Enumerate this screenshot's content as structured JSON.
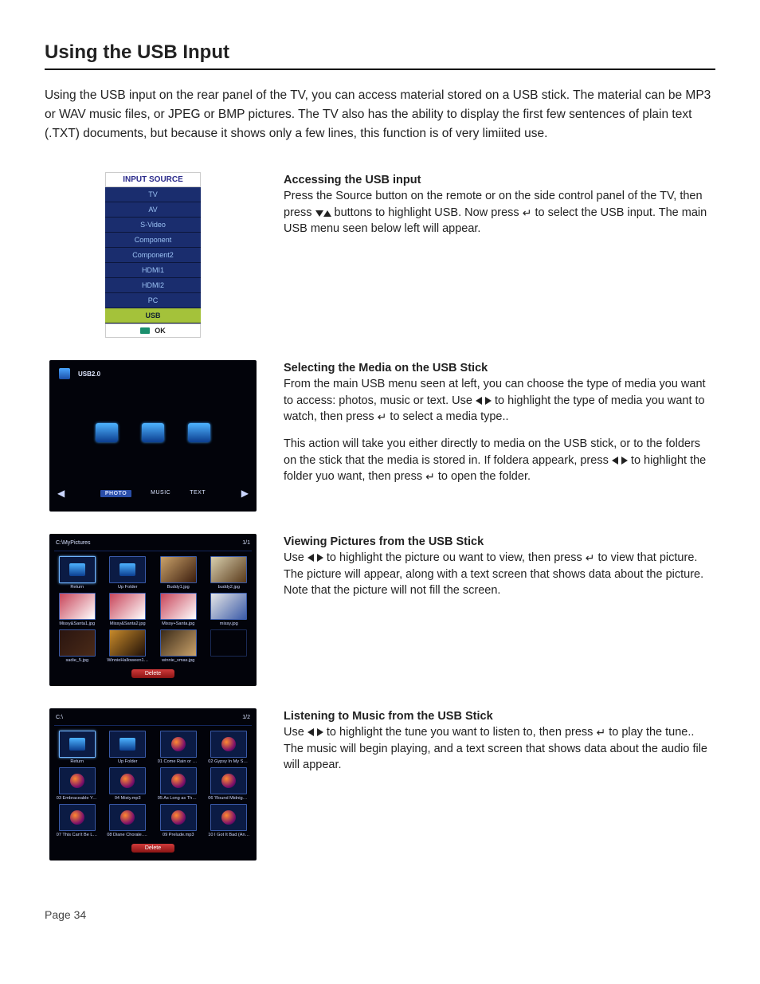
{
  "title": "Using the USB Input",
  "intro": "Using the USB input on the rear panel of the TV, you can access material stored on a USB stick. The material can be MP3 or WAV music files, or JPEG or BMP pictures. The TV also has the ability to display the first few sentences of plain text (.TXT) documents, but because it shows only a few lines, this function is of very limiited use.",
  "page_footer": "Page 34",
  "sec1": {
    "heading": "Accessing the USB input",
    "p1a": "Press the Source button on the remote or on the side control panel of the TV, then press ",
    "p1b": " buttons to highlight USB. Now press ",
    "p1c": "  to select the USB input. The main USB menu seen below left will appear."
  },
  "sec2": {
    "heading": "Selecting the Media on the USB Stick",
    "p1a": "From the main USB menu seen at left, you can choose the type of media you want to access: photos, music or text. Use ",
    "p1b": " to highlight  the type of media you want to watch, then press ",
    "p1c": "  to select a media type..",
    "p2a": "This action will take you either directly to media on the USB stick, or to the folders on the stick that the media is stored in. If foldera appeark, press ",
    "p2b": " to highlight  the folder yuo want, then press ",
    "p2c": "  to open the folder."
  },
  "sec3": {
    "heading": "Viewing  Pictures from the USB Stick",
    "p1a": "Use ",
    "p1b": " to highlight  the picture ou want to view, then press ",
    "p1c": "  to view that picture. The picture will appear, along with a text screen that shows data about the picture. Note that the picture will not fill the screen."
  },
  "sec4": {
    "heading": "Listening to Music  from the USB Stick",
    "p1a": "Use ",
    "p1b": " to highlight the tune  you want to listen to, then press ",
    "p1c": "  to play the tune.. The music will begin playing, and a text screen that shows data about the audio file will appear."
  },
  "input_source": {
    "title": "INPUT SOURCE",
    "items": [
      "TV",
      "AV",
      "S-Video",
      "Component",
      "Component2",
      "HDMI1",
      "HDMI2",
      "PC",
      "USB"
    ],
    "selected_index": 8,
    "ok_label": "OK",
    "colors": {
      "bg": "#1a2d6e",
      "text": "#9cc3f5",
      "sel_bg": "#a4c23a",
      "sel_text": "#102030",
      "head_text": "#2a2a8a"
    }
  },
  "media_menu": {
    "device": "USB2.0",
    "options": [
      "PHOTO",
      "MUSIC",
      "TEXT"
    ],
    "selected_index": 0,
    "colors": {
      "bg": "#02030a",
      "tile": "#1b4fa8",
      "text": "#d8e2ff",
      "sel_bg": "#2a4ea8"
    }
  },
  "photo_grid": {
    "path_label": "C:\\MyPictures",
    "counter": "1/1",
    "delete_label": "Delete",
    "items": [
      {
        "label": "Return",
        "type": "nav",
        "sel": true
      },
      {
        "label": "Up Folder",
        "type": "nav"
      },
      {
        "label": "Buddy1.jpg",
        "type": "pic",
        "c1": "#caa26a",
        "c2": "#3b1d0d"
      },
      {
        "label": "buddy2.jpg",
        "type": "pic",
        "c1": "#d8cfae",
        "c2": "#5a3a1a"
      },
      {
        "label": "Missy&Santa1.jpg",
        "type": "pic",
        "c1": "#c8455a",
        "c2": "#ffffff"
      },
      {
        "label": "Missy&Santa2.jpg",
        "type": "pic",
        "c1": "#c8455a",
        "c2": "#ffffff"
      },
      {
        "label": "Missy+Santa.jpg",
        "type": "pic",
        "c1": "#c8455a",
        "c2": "#ffffff"
      },
      {
        "label": "missy.jpg",
        "type": "pic",
        "c1": "#e6e6e6",
        "c2": "#3a5aa8"
      },
      {
        "label": "sadie_5.jpg",
        "type": "pic",
        "c1": "#2a1510",
        "c2": "#4a2a18"
      },
      {
        "label": "WinnieHalloween1.jpg",
        "type": "pic",
        "c1": "#c88a2a",
        "c2": "#201008"
      },
      {
        "label": "winnie_xmas.jpg",
        "type": "pic",
        "c1": "#3a2a18",
        "c2": "#caa26a"
      },
      {
        "label": "",
        "type": "empty"
      }
    ]
  },
  "music_grid": {
    "path_label": "C:\\",
    "counter": "1/2",
    "delete_label": "Delete",
    "items": [
      {
        "label": "Return",
        "type": "nav",
        "sel": true
      },
      {
        "label": "Up Folder",
        "type": "nav"
      },
      {
        "label": "01 Come Rain or Come S...",
        "type": "music"
      },
      {
        "label": "02 Gypsy In My Soul.mp3",
        "type": "music"
      },
      {
        "label": "03 Embraceable You.mp3",
        "type": "music"
      },
      {
        "label": "04 Misty.mp3",
        "type": "music"
      },
      {
        "label": "05 As Long as There's M...",
        "type": "music"
      },
      {
        "label": "06 'Round Midnight.mp3",
        "type": "music"
      },
      {
        "label": "07 This Can't Be Love....",
        "type": "music"
      },
      {
        "label": "08 Diane Chorale.mp3",
        "type": "music"
      },
      {
        "label": "09 Prelude.mp3",
        "type": "music"
      },
      {
        "label": "10 I Got It Bad (And That...",
        "type": "music"
      }
    ]
  }
}
